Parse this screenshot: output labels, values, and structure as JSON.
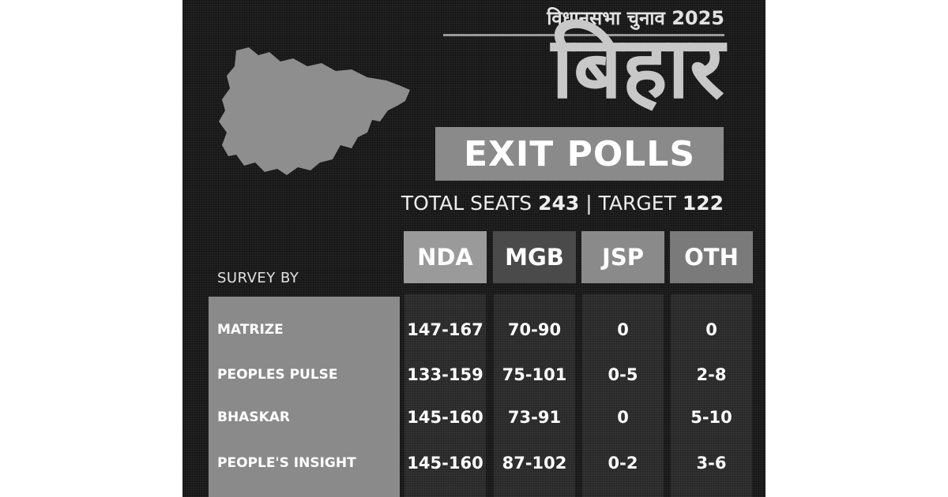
{
  "header": {
    "kicker": "विधानसभा चुनाव 2025",
    "state": "बिहार",
    "banner": "EXIT POLLS",
    "total_seats_label": "TOTAL SEATS",
    "total_seats_value": "243",
    "separator": "|",
    "target_label": "TARGET",
    "target_value": "122"
  },
  "map_icon": "bihar-state-map",
  "colors": {
    "background": "#1c1c1c",
    "panel": "#8a8a8a",
    "nda": "#9a9a9a",
    "mgb": "#4a4a4a",
    "jsp": "#8a8a8a",
    "oth": "#7a7a7a"
  },
  "table": {
    "survey_label": "SURVEY BY",
    "columns": [
      "NDA",
      "MGB",
      "JSP",
      "OTH"
    ],
    "rows": [
      {
        "name": "MATRIZE",
        "values": [
          "147-167",
          "70-90",
          "0",
          "0"
        ]
      },
      {
        "name": "PEOPLES PULSE",
        "values": [
          "133-159",
          "75-101",
          "0-5",
          "2-8"
        ]
      },
      {
        "name": "BHASKAR",
        "values": [
          "145-160",
          "73-91",
          "0",
          "5-10"
        ]
      },
      {
        "name": "PEOPLE'S INSIGHT",
        "values": [
          "145-160",
          "87-102",
          "0-2",
          "3-6"
        ]
      }
    ]
  }
}
